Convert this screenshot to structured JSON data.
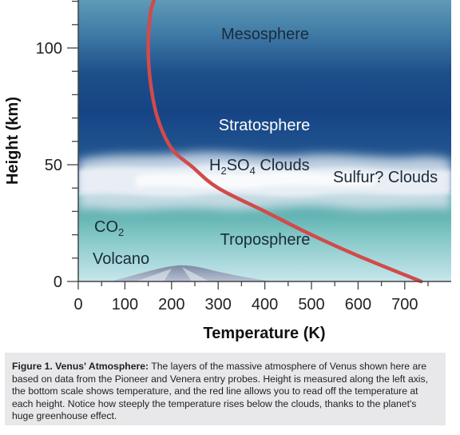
{
  "figure": {
    "layers": {
      "mesosphere": "Mesosphere",
      "stratosphere": "Stratosphere",
      "h2so4_pre": "H",
      "h2so4_sub1": "2",
      "h2so4_mid": "SO",
      "h2so4_sub2": "4",
      "h2so4_post": " Clouds",
      "sulfur": "Sulfur? Clouds",
      "co2_pre": "CO",
      "co2_sub": "2",
      "troposphere": "Troposphere",
      "volcano": "Volcano"
    },
    "y_axis": {
      "title": "Height (km)",
      "ticks": [
        {
          "value": 0,
          "label": "0"
        },
        {
          "value": 50,
          "label": "50"
        },
        {
          "value": 100,
          "label": "100"
        }
      ]
    },
    "x_axis": {
      "title": "Temperature (K)",
      "ticks": [
        {
          "value": 0,
          "label": "0"
        },
        {
          "value": 100,
          "label": "100"
        },
        {
          "value": 200,
          "label": "200"
        },
        {
          "value": 300,
          "label": "300"
        },
        {
          "value": 400,
          "label": "400"
        },
        {
          "value": 500,
          "label": "500"
        },
        {
          "value": 600,
          "label": "600"
        },
        {
          "value": 700,
          "label": "700"
        }
      ]
    },
    "temperature_profile_color": "#d24a4a",
    "temperature_profile": [
      {
        "temperature": 735,
        "height": 0
      },
      {
        "temperature": 600,
        "height": 11
      },
      {
        "temperature": 500,
        "height": 20
      },
      {
        "temperature": 400,
        "height": 30
      },
      {
        "temperature": 300,
        "height": 40
      },
      {
        "temperature": 245,
        "height": 49
      },
      {
        "temperature": 200,
        "height": 57
      },
      {
        "temperature": 170,
        "height": 70
      },
      {
        "temperature": 155,
        "height": 85
      },
      {
        "temperature": 150,
        "height": 100
      },
      {
        "temperature": 155,
        "height": 115
      },
      {
        "temperature": 165,
        "height": 122
      }
    ]
  },
  "caption": {
    "title": "Figure 1. Venus' Atmosphere:",
    "text": " The layers of the massive atmosphere of Venus shown here are based on data from the Pioneer and Venera entry probes. Height is measured along the left axis, the bottom scale shows temperature, and the red line allows you to read off the temperature at each height. Notice how steeply the temperature rises below the clouds, thanks to the planet's huge greenhouse effect."
  }
}
